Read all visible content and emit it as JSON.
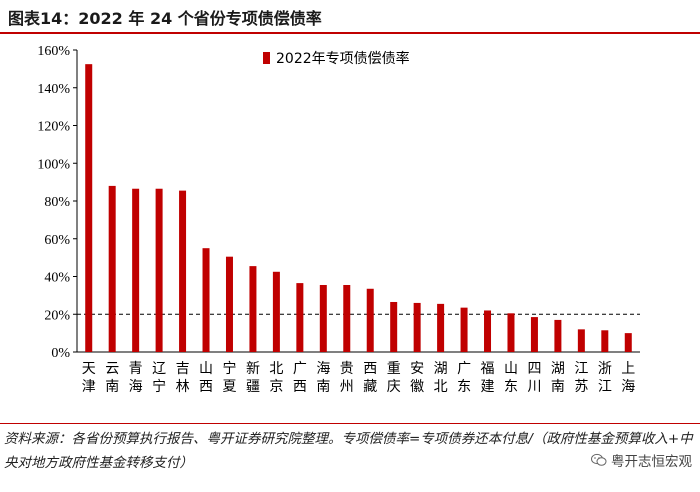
{
  "title": "图表14：2022 年 24 个省份专项债偿债率",
  "note": "资料来源：各省份预算执行报告、粤开证券研究院整理。专项偿债率=专项债券还本付息/（政府性基金预算收入+中央对地方政府性基金转移支付）",
  "watermark": {
    "text": "粤开志恒宏观",
    "icon": "wechat-icon"
  },
  "colors": {
    "bar": "#c00000",
    "title_rule": "#c00000",
    "reference_line": "#000000"
  },
  "chart_data": {
    "type": "bar",
    "title": "",
    "xlabel": "",
    "ylabel": "",
    "ylim": [
      0,
      160
    ],
    "yticks": [
      "0%",
      "20%",
      "40%",
      "60%",
      "80%",
      "100%",
      "120%",
      "140%",
      "160%"
    ],
    "legend": {
      "placement": "top-center",
      "label": "2022年专项债偿债率"
    },
    "reference_line": {
      "value": 20,
      "style": "dashed"
    },
    "categories": [
      "天津",
      "云南",
      "青海",
      "辽宁",
      "吉林",
      "山西",
      "宁夏",
      "新疆",
      "北京",
      "广西",
      "海南",
      "贵州",
      "西藏",
      "重庆",
      "安徽",
      "湖北",
      "广东",
      "福建",
      "山东",
      "四川",
      "湖南",
      "江苏",
      "浙江",
      "上海"
    ],
    "series": [
      {
        "name": "2022年专项债偿债率",
        "values": [
          152.5,
          88,
          86.5,
          86.5,
          85.5,
          55,
          50.5,
          45.5,
          42.5,
          36.5,
          35.5,
          35.5,
          33.5,
          26.5,
          26,
          25.5,
          23.5,
          22,
          20.5,
          18.5,
          17,
          12,
          11.5,
          10
        ]
      }
    ]
  }
}
